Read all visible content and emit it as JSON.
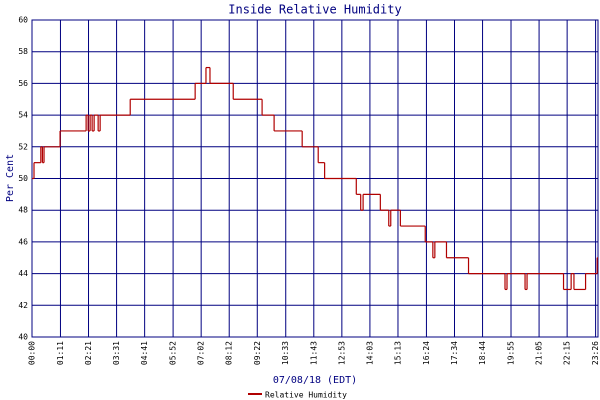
{
  "chart_data": {
    "type": "line",
    "drawstyle": "steps-post",
    "title": "Inside Relative Humidity",
    "x_label": "07/08/18 (EDT)",
    "y_label": "Per Cent",
    "grid": true,
    "series": [
      {
        "name": "Relative Humidity",
        "color": "#b00000",
        "x": [
          0,
          5,
          22,
          26,
          30,
          70,
          135,
          140,
          145,
          150,
          155,
          165,
          170,
          245,
          407,
          434,
          444,
          502,
          574,
          604,
          674,
          714,
          730,
          809,
          820,
          826,
          869,
          890,
          895,
          919,
          981,
          1000,
          1005,
          1034,
          1089,
          1180,
          1185,
          1230,
          1235,
          1326,
          1345,
          1352,
          1381,
          1410
        ],
        "values": [
          50,
          51,
          52,
          51,
          52,
          53,
          54,
          53,
          54,
          53,
          54,
          53,
          54,
          55,
          56,
          57,
          56,
          55,
          54,
          53,
          52,
          51,
          50,
          49,
          48,
          49,
          48,
          47,
          48,
          47,
          46,
          45,
          46,
          45,
          44,
          43,
          44,
          43,
          44,
          43,
          44,
          43,
          44,
          45
        ]
      }
    ],
    "xlim": [
      0,
      1412
    ],
    "xticks": [
      {
        "value": 0,
        "label": "00:00"
      },
      {
        "value": 71,
        "label": "01:11"
      },
      {
        "value": 141,
        "label": "02:21"
      },
      {
        "value": 211,
        "label": "03:31"
      },
      {
        "value": 281,
        "label": "04:41"
      },
      {
        "value": 352,
        "label": "05:52"
      },
      {
        "value": 422,
        "label": "07:02"
      },
      {
        "value": 492,
        "label": "08:12"
      },
      {
        "value": 562,
        "label": "09:22"
      },
      {
        "value": 633,
        "label": "10:33"
      },
      {
        "value": 703,
        "label": "11:43"
      },
      {
        "value": 773,
        "label": "12:53"
      },
      {
        "value": 843,
        "label": "14:03"
      },
      {
        "value": 913,
        "label": "15:13"
      },
      {
        "value": 984,
        "label": "16:24"
      },
      {
        "value": 1054,
        "label": "17:34"
      },
      {
        "value": 1124,
        "label": "18:44"
      },
      {
        "value": 1195,
        "label": "19:55"
      },
      {
        "value": 1265,
        "label": "21:05"
      },
      {
        "value": 1335,
        "label": "22:15"
      },
      {
        "value": 1406,
        "label": "23:26"
      }
    ],
    "ylim": [
      40,
      60
    ],
    "yticks": [
      40,
      42,
      44,
      46,
      48,
      50,
      52,
      54,
      56,
      58,
      60
    ]
  }
}
